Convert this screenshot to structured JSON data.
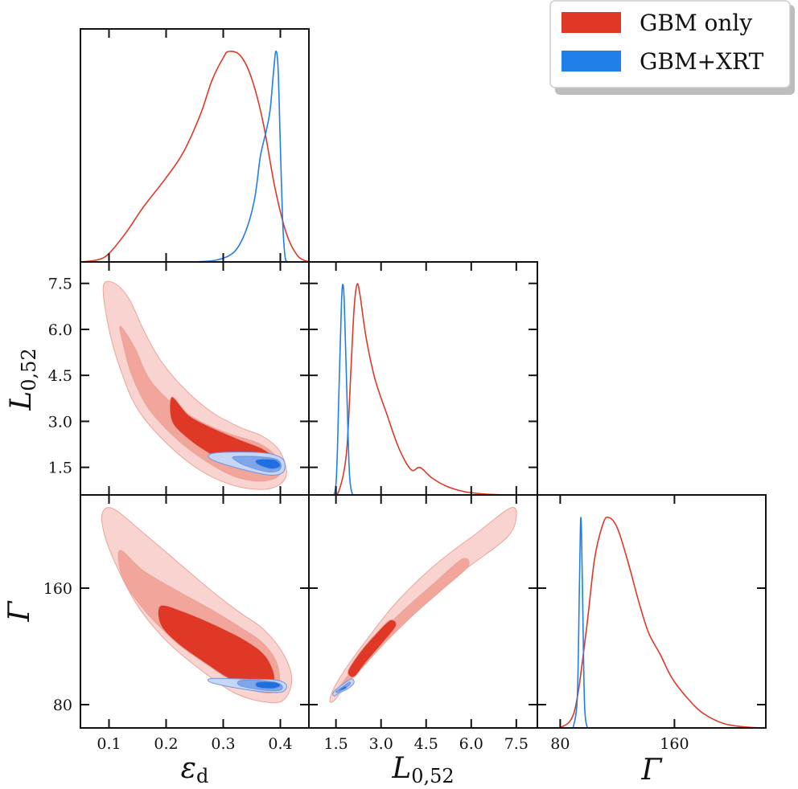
{
  "chart_data": {
    "type": "corner",
    "grid": false,
    "legend": {
      "placement": "top-right",
      "entries": [
        {
          "label": "GBM only",
          "color": "#e03826"
        },
        {
          "label": "GBM+XRT",
          "color": "#1f7fe8"
        }
      ]
    },
    "colors": {
      "gbm_line": "#e03826",
      "xrt_line": "#1f7fe8",
      "gbm_fill_outer": "#f9d3cf",
      "gbm_fill_mid": "#f2a59a",
      "gbm_fill_inner": "#e03826",
      "xrt_fill_outer": "#c6d6f5",
      "xrt_fill_mid": "#7fa6ea",
      "xrt_fill_inner": "#1f6fe0"
    },
    "parameters": [
      {
        "key": "eps",
        "label_main": "ε",
        "label_sub": "d",
        "range": [
          0.05,
          0.45
        ],
        "ticks": [
          "0.1",
          "0.2",
          "0.3",
          "0.4"
        ],
        "tick_values": [
          0.1,
          0.2,
          0.3,
          0.4
        ]
      },
      {
        "key": "L",
        "label_main": "L",
        "label_sub": "0,52",
        "range": [
          0.6,
          8.2
        ],
        "ticks": [
          "1.5",
          "3.0",
          "4.5",
          "6.0",
          "7.5"
        ],
        "tick_values": [
          1.5,
          3.0,
          4.5,
          6.0,
          7.5
        ]
      },
      {
        "key": "G",
        "label_main": "Γ",
        "label_sub": "",
        "range": [
          64,
          224
        ],
        "ticks": [
          "80",
          "160"
        ],
        "tick_values": [
          80,
          160
        ]
      }
    ],
    "marginals": {
      "eps": {
        "gbm": [
          [
            0.05,
            0.0
          ],
          [
            0.08,
            0.01
          ],
          [
            0.1,
            0.04
          ],
          [
            0.13,
            0.14
          ],
          [
            0.16,
            0.26
          ],
          [
            0.2,
            0.4
          ],
          [
            0.23,
            0.52
          ],
          [
            0.26,
            0.7
          ],
          [
            0.28,
            0.86
          ],
          [
            0.3,
            0.97
          ],
          [
            0.31,
            1.0
          ],
          [
            0.33,
            0.98
          ],
          [
            0.35,
            0.87
          ],
          [
            0.37,
            0.66
          ],
          [
            0.39,
            0.36
          ],
          [
            0.41,
            0.14
          ],
          [
            0.43,
            0.03
          ],
          [
            0.45,
            0.0
          ]
        ],
        "xrt": [
          [
            0.25,
            0.0
          ],
          [
            0.29,
            0.01
          ],
          [
            0.32,
            0.05
          ],
          [
            0.34,
            0.15
          ],
          [
            0.355,
            0.3
          ],
          [
            0.365,
            0.5
          ],
          [
            0.375,
            0.62
          ],
          [
            0.382,
            0.72
          ],
          [
            0.388,
            0.9
          ],
          [
            0.392,
            1.0
          ],
          [
            0.396,
            0.92
          ],
          [
            0.4,
            0.55
          ],
          [
            0.404,
            0.2
          ],
          [
            0.408,
            0.03
          ],
          [
            0.412,
            0.0
          ]
        ]
      },
      "L": {
        "gbm": [
          [
            1.35,
            0.0
          ],
          [
            1.6,
            0.02
          ],
          [
            1.85,
            0.2
          ],
          [
            2.0,
            0.6
          ],
          [
            2.1,
            0.88
          ],
          [
            2.2,
            1.0
          ],
          [
            2.3,
            0.95
          ],
          [
            2.5,
            0.75
          ],
          [
            2.8,
            0.55
          ],
          [
            3.2,
            0.38
          ],
          [
            3.6,
            0.22
          ],
          [
            4.0,
            0.12
          ],
          [
            4.3,
            0.13
          ],
          [
            4.7,
            0.08
          ],
          [
            5.2,
            0.04
          ],
          [
            5.8,
            0.015
          ],
          [
            6.5,
            0.004
          ],
          [
            7.3,
            0.0
          ]
        ],
        "xrt": [
          [
            1.3,
            0.0
          ],
          [
            1.5,
            0.05
          ],
          [
            1.6,
            0.5
          ],
          [
            1.68,
            0.9
          ],
          [
            1.73,
            1.0
          ],
          [
            1.78,
            0.9
          ],
          [
            1.86,
            0.5
          ],
          [
            1.95,
            0.1
          ],
          [
            2.05,
            0.0
          ]
        ]
      },
      "G": {
        "gbm": [
          [
            80,
            0.0
          ],
          [
            90,
            0.08
          ],
          [
            98,
            0.45
          ],
          [
            104,
            0.8
          ],
          [
            110,
            0.97
          ],
          [
            114,
            1.0
          ],
          [
            120,
            0.95
          ],
          [
            127,
            0.8
          ],
          [
            135,
            0.6
          ],
          [
            142,
            0.45
          ],
          [
            150,
            0.35
          ],
          [
            158,
            0.24
          ],
          [
            168,
            0.15
          ],
          [
            180,
            0.07
          ],
          [
            195,
            0.02
          ],
          [
            212,
            0.003
          ],
          [
            224,
            0.0
          ]
        ],
        "xrt": [
          [
            89,
            0.0
          ],
          [
            92,
            0.15
          ],
          [
            93.5,
            0.7
          ],
          [
            94.5,
            1.0
          ],
          [
            95.5,
            0.7
          ],
          [
            97,
            0.12
          ],
          [
            99,
            0.0
          ]
        ]
      }
    },
    "joint": {
      "L_vs_eps": {
        "gbm": [
          [
            [
              0.09,
              7.4
            ],
            [
              0.11,
              7.5
            ],
            [
              0.135,
              7.0
            ],
            [
              0.16,
              6.0
            ],
            [
              0.19,
              5.0
            ],
            [
              0.23,
              4.1
            ],
            [
              0.28,
              3.3
            ],
            [
              0.33,
              2.8
            ],
            [
              0.37,
              2.5
            ],
            [
              0.4,
              2.0
            ],
            [
              0.41,
              1.2
            ],
            [
              0.38,
              0.8
            ],
            [
              0.32,
              0.9
            ],
            [
              0.26,
              1.4
            ],
            [
              0.2,
              2.3
            ],
            [
              0.15,
              3.4
            ],
            [
              0.12,
              4.7
            ],
            [
              0.1,
              6.0
            ]
          ],
          [
            [
              0.12,
              6.1
            ],
            [
              0.145,
              5.4
            ],
            [
              0.17,
              4.4
            ],
            [
              0.21,
              3.6
            ],
            [
              0.26,
              3.0
            ],
            [
              0.31,
              2.6
            ],
            [
              0.36,
              2.3
            ],
            [
              0.39,
              1.9
            ],
            [
              0.4,
              1.3
            ],
            [
              0.37,
              1.05
            ],
            [
              0.32,
              1.2
            ],
            [
              0.27,
              1.7
            ],
            [
              0.22,
              2.4
            ],
            [
              0.17,
              3.4
            ],
            [
              0.14,
              4.5
            ],
            [
              0.125,
              5.5
            ]
          ],
          [
            [
              0.21,
              3.8
            ],
            [
              0.24,
              3.2
            ],
            [
              0.28,
              2.8
            ],
            [
              0.33,
              2.4
            ],
            [
              0.37,
              2.1
            ],
            [
              0.395,
              1.7
            ],
            [
              0.38,
              1.35
            ],
            [
              0.33,
              1.45
            ],
            [
              0.28,
              1.9
            ],
            [
              0.24,
              2.4
            ],
            [
              0.21,
              3.0
            ]
          ]
        ],
        "xrt": [
          [
            [
              0.28,
              1.95
            ],
            [
              0.33,
              2.0
            ],
            [
              0.38,
              1.95
            ],
            [
              0.405,
              1.75
            ],
            [
              0.405,
              1.35
            ],
            [
              0.38,
              1.25
            ],
            [
              0.33,
              1.45
            ],
            [
              0.28,
              1.75
            ]
          ],
          [
            [
              0.32,
              1.85
            ],
            [
              0.36,
              1.85
            ],
            [
              0.395,
              1.75
            ],
            [
              0.4,
              1.45
            ],
            [
              0.38,
              1.35
            ],
            [
              0.34,
              1.55
            ],
            [
              0.32,
              1.75
            ]
          ],
          [
            [
              0.36,
              1.75
            ],
            [
              0.39,
              1.75
            ],
            [
              0.4,
              1.55
            ],
            [
              0.385,
              1.45
            ],
            [
              0.36,
              1.6
            ]
          ]
        ]
      },
      "G_vs_eps": {
        "gbm": [
          [
            [
              0.09,
              213
            ],
            [
              0.11,
              214
            ],
            [
              0.16,
              198
            ],
            [
              0.22,
              178
            ],
            [
              0.28,
              158
            ],
            [
              0.33,
              143
            ],
            [
              0.37,
              132
            ],
            [
              0.405,
              115
            ],
            [
              0.42,
              97
            ],
            [
              0.405,
              83
            ],
            [
              0.37,
              82
            ],
            [
              0.32,
              88
            ],
            [
              0.26,
              104
            ],
            [
              0.2,
              124
            ],
            [
              0.15,
              148
            ],
            [
              0.11,
              178
            ],
            [
              0.09,
              200
            ]
          ],
          [
            [
              0.12,
              186
            ],
            [
              0.16,
              172
            ],
            [
              0.22,
              158
            ],
            [
              0.28,
              145
            ],
            [
              0.33,
              133
            ],
            [
              0.37,
              122
            ],
            [
              0.395,
              107
            ],
            [
              0.395,
              90
            ],
            [
              0.36,
              89
            ],
            [
              0.31,
              98
            ],
            [
              0.25,
              114
            ],
            [
              0.19,
              133
            ],
            [
              0.14,
              156
            ],
            [
              0.12,
              172
            ]
          ],
          [
            [
              0.19,
              148
            ],
            [
              0.23,
              144
            ],
            [
              0.29,
              134
            ],
            [
              0.34,
              124
            ],
            [
              0.375,
              113
            ],
            [
              0.39,
              98
            ],
            [
              0.37,
              93
            ],
            [
              0.32,
              96
            ],
            [
              0.27,
              108
            ],
            [
              0.22,
              122
            ],
            [
              0.19,
              135
            ]
          ]
        ],
        "xrt": [
          [
            [
              0.28,
              98
            ],
            [
              0.34,
              97.5
            ],
            [
              0.39,
              97
            ],
            [
              0.41,
              94
            ],
            [
              0.405,
              89
            ],
            [
              0.38,
              88.5
            ],
            [
              0.33,
              91
            ],
            [
              0.28,
              95
            ]
          ],
          [
            [
              0.33,
              96.5
            ],
            [
              0.37,
              96.5
            ],
            [
              0.4,
              94
            ],
            [
              0.4,
              90
            ],
            [
              0.37,
              90
            ],
            [
              0.33,
              93
            ]
          ],
          [
            [
              0.36,
              95.5
            ],
            [
              0.39,
              95.5
            ],
            [
              0.4,
              93
            ],
            [
              0.385,
              91
            ],
            [
              0.36,
              92
            ]
          ]
        ]
      },
      "G_vs_L": {
        "gbm": [
          [
            [
              1.3,
              82
            ],
            [
              1.4,
              90
            ],
            [
              1.8,
              104
            ],
            [
              2.5,
              124
            ],
            [
              3.5,
              150
            ],
            [
              4.8,
              176
            ],
            [
              6.2,
              198
            ],
            [
              7.3,
              215
            ],
            [
              7.5,
              209
            ],
            [
              7.2,
              195
            ],
            [
              6.0,
              176
            ],
            [
              4.8,
              158
            ],
            [
              3.6,
              136
            ],
            [
              2.6,
              114
            ],
            [
              1.9,
              96
            ],
            [
              1.5,
              84
            ]
          ],
          [
            [
              1.5,
              89
            ],
            [
              1.9,
              100
            ],
            [
              2.5,
              117
            ],
            [
              3.5,
              140
            ],
            [
              4.8,
              164
            ],
            [
              5.7,
              180
            ],
            [
              5.9,
              175
            ],
            [
              5.2,
              162
            ],
            [
              4.2,
              144
            ],
            [
              3.2,
              124
            ],
            [
              2.4,
              106
            ],
            [
              1.8,
              93
            ]
          ],
          [
            [
              1.9,
              103
            ],
            [
              2.3,
              116
            ],
            [
              2.8,
              128
            ],
            [
              3.3,
              138
            ],
            [
              3.5,
              134
            ],
            [
              3.0,
              121
            ],
            [
              2.5,
              109
            ],
            [
              2.1,
              99
            ]
          ]
        ],
        "xrt": [
          [
            [
              1.4,
              88
            ],
            [
              1.6,
              92
            ],
            [
              2.0,
              97.5
            ],
            [
              2.1,
              95
            ],
            [
              1.9,
              91
            ],
            [
              1.6,
              88
            ],
            [
              1.45,
              86
            ]
          ],
          [
            [
              1.5,
              89
            ],
            [
              1.7,
              92
            ],
            [
              1.95,
              95.5
            ],
            [
              1.95,
              93.5
            ],
            [
              1.7,
              90
            ],
            [
              1.55,
              88.5
            ]
          ],
          [
            [
              1.6,
              90
            ],
            [
              1.8,
              92.5
            ],
            [
              1.85,
              91.5
            ],
            [
              1.7,
              90
            ]
          ]
        ]
      }
    }
  }
}
